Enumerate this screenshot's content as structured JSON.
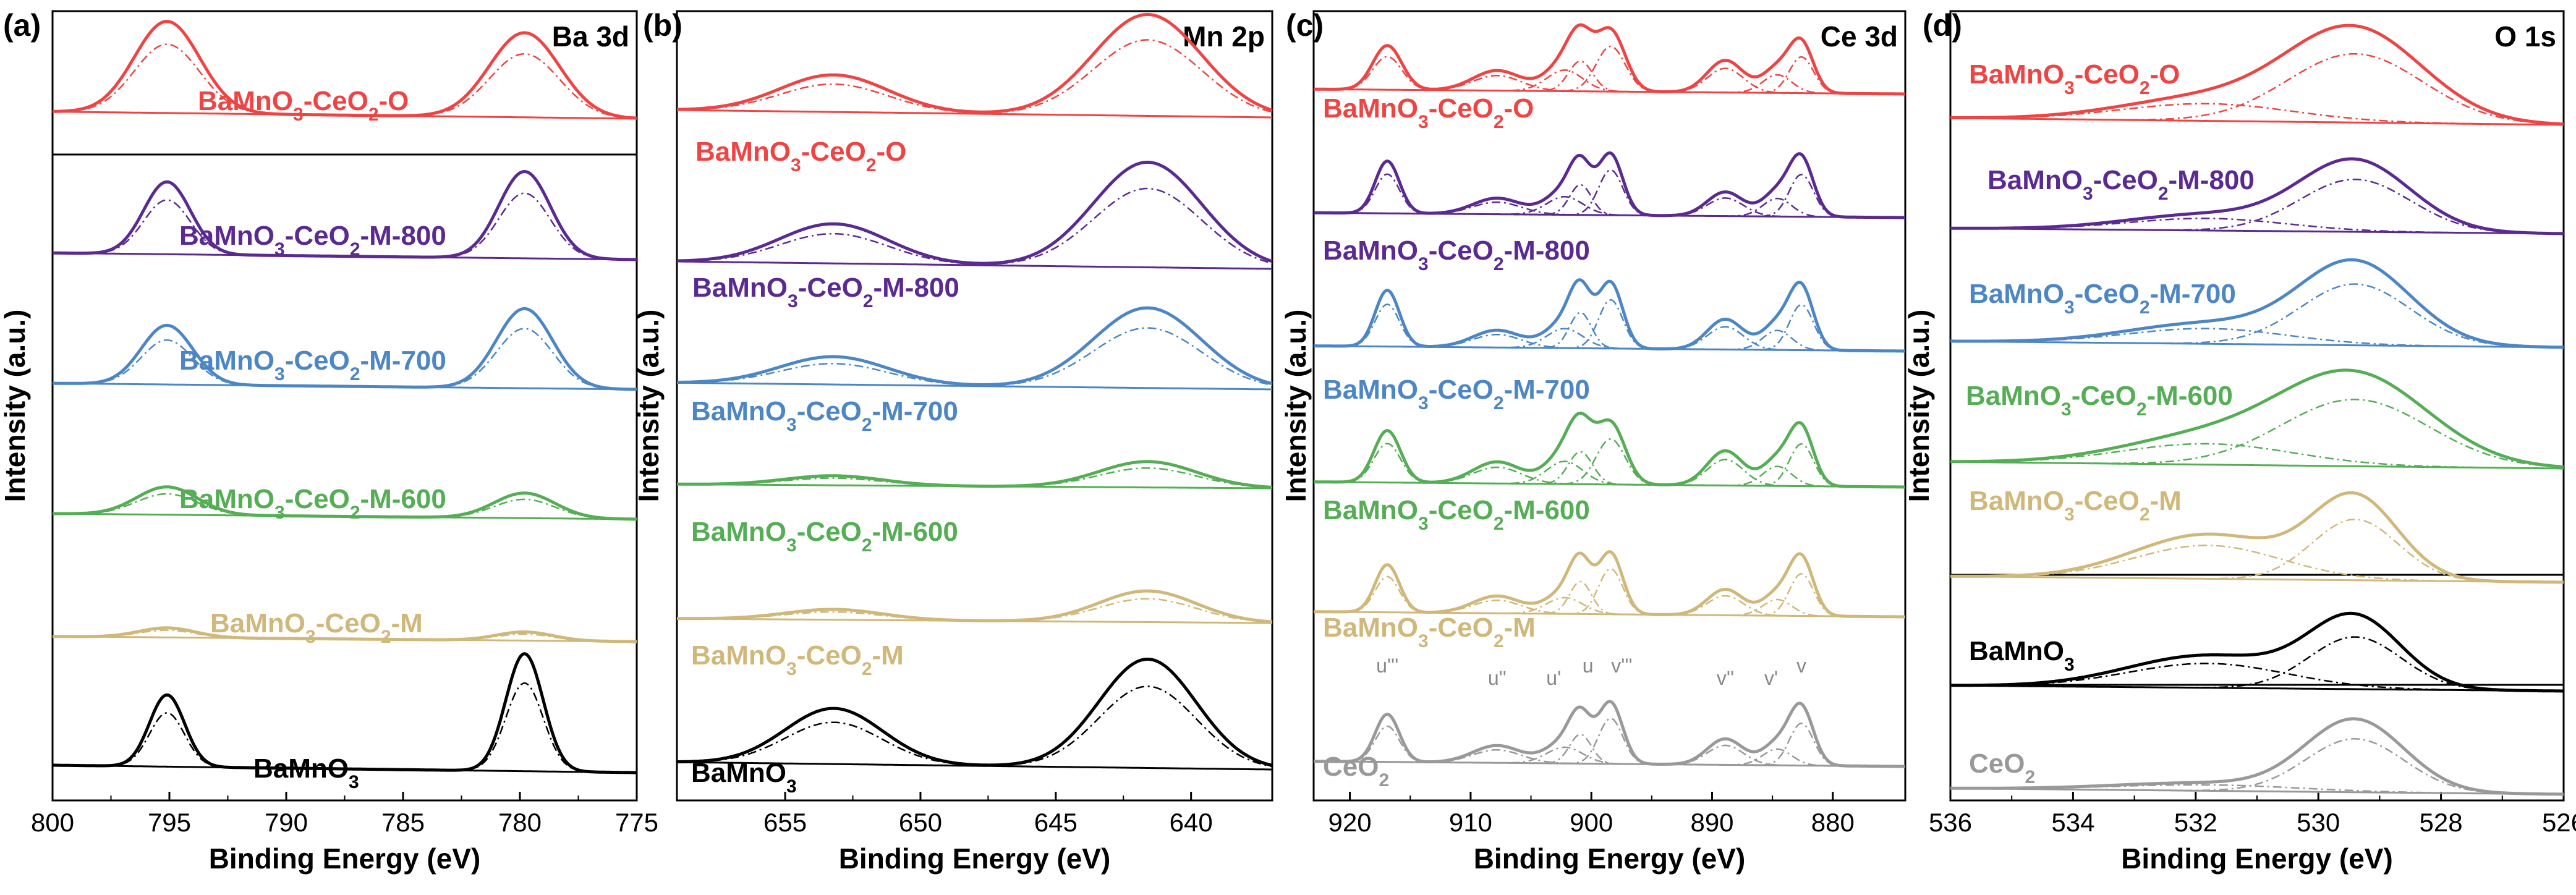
{
  "figure": {
    "y_axis_label": "Intensity (a.u.)",
    "x_axis_label": "Binding Energy (eV)"
  },
  "colors": {
    "O": "#ee4444",
    "M800": "#5a2a91",
    "M700": "#4d86c5",
    "M600": "#55ad55",
    "M": "#d0b87a",
    "BaMnO3": "#000000",
    "CeO2": "#999999"
  },
  "chart_data": [
    {
      "type": "line",
      "panel": "(a)",
      "title": "Ba 3d",
      "xlabel": "Binding Energy (eV)",
      "ylabel": "Intensity (a.u.)",
      "xlim": [
        800,
        775
      ],
      "xticks": [
        800,
        795,
        790,
        785,
        780,
        775
      ],
      "xtick_labels": [
        "800",
        "795",
        "790",
        "785",
        "780",
        "775"
      ],
      "peaks_eV": [
        795.1,
        779.8
      ],
      "series": [
        {
          "key": "O",
          "name": "BaMnO3-CeO2-O",
          "label_parts": [
            "BaMnO",
            "3",
            "-CeO",
            "2",
            "-O"
          ],
          "baseline": 0,
          "heights": [
            0.78,
            0.72
          ],
          "widths": [
            1.4,
            1.5
          ]
        },
        {
          "key": "M800",
          "name": "BaMnO3-CeO2-M-800",
          "label_parts": [
            "BaMnO",
            "3",
            "-CeO",
            "2",
            "-M-800"
          ],
          "baseline": 1,
          "heights": [
            0.65,
            0.78
          ],
          "widths": [
            1.0,
            1.1
          ]
        },
        {
          "key": "M700",
          "name": "BaMnO3-CeO2-M-700",
          "label_parts": [
            "BaMnO",
            "3",
            "-CeO",
            "2",
            "-M-700"
          ],
          "baseline": 2,
          "heights": [
            0.58,
            0.78
          ],
          "widths": [
            1.1,
            1.2
          ]
        },
        {
          "key": "M600",
          "name": "BaMnO3-CeO2-M-600",
          "label_parts": [
            "BaMnO",
            "3",
            "-CeO",
            "2",
            "-M-600"
          ],
          "baseline": 3,
          "heights": [
            0.3,
            0.27
          ],
          "widths": [
            1.3,
            1.3
          ]
        },
        {
          "key": "M",
          "name": "BaMnO3-CeO2-M",
          "label_parts": [
            "BaMnO",
            "3",
            "-CeO",
            "2",
            "-M"
          ],
          "baseline": 4,
          "heights": [
            0.11,
            0.1
          ],
          "widths": [
            1.2,
            1.2
          ]
        },
        {
          "key": "BaMnO3",
          "name": "BaMnO3",
          "label_parts": [
            "BaMnO",
            "3"
          ],
          "baseline": 5,
          "heights": [
            0.58,
            0.95
          ],
          "widths": [
            0.75,
            0.8
          ]
        }
      ]
    },
    {
      "type": "line",
      "panel": "(b)",
      "title": "Mn 2p",
      "xlabel": "Binding Energy (eV)",
      "ylabel": "Intensity (a.u.)",
      "xlim": [
        659,
        637
      ],
      "xticks": [
        655,
        650,
        645,
        640
      ],
      "xtick_labels": [
        "655",
        "650",
        "645",
        "640"
      ],
      "peaks_eV": [
        653.2,
        641.6
      ],
      "series": [
        {
          "key": "O",
          "name": "BaMnO3-CeO2-O",
          "label_parts": [
            "BaMnO",
            "3",
            "-CeO",
            "2",
            "-O"
          ],
          "baseline": 0,
          "heights": [
            0.3,
            0.82
          ],
          "widths": [
            2.0,
            2.0
          ]
        },
        {
          "key": "M800",
          "name": "BaMnO3-CeO2-M-800",
          "label_parts": [
            "BaMnO",
            "3",
            "-CeO",
            "2",
            "-M-800"
          ],
          "baseline": 1,
          "heights": [
            0.32,
            0.85
          ],
          "widths": [
            2.0,
            2.0
          ]
        },
        {
          "key": "M700",
          "name": "BaMnO3-CeO2-M-700",
          "label_parts": [
            "BaMnO",
            "3",
            "-CeO",
            "2",
            "-M-700"
          ],
          "baseline": 2,
          "heights": [
            0.25,
            0.72
          ],
          "widths": [
            2.0,
            2.0
          ]
        },
        {
          "key": "M600",
          "name": "BaMnO3-CeO2-M-600",
          "label_parts": [
            "BaMnO",
            "3",
            "-CeO",
            "2",
            "-M-600"
          ],
          "baseline": 3,
          "heights": [
            0.14,
            0.38
          ],
          "widths": [
            1.8,
            1.8
          ]
        },
        {
          "key": "M",
          "name": "BaMnO3-CeO2-M",
          "label_parts": [
            "BaMnO",
            "3",
            "-CeO",
            "2",
            "-M"
          ],
          "baseline": 4,
          "heights": [
            0.14,
            0.42
          ],
          "widths": [
            1.8,
            1.8
          ]
        },
        {
          "key": "BaMnO3",
          "name": "BaMnO3",
          "label_parts": [
            "BaMnO",
            "3"
          ],
          "baseline": 5,
          "heights": [
            0.45,
            0.88
          ],
          "widths": [
            1.8,
            1.8
          ]
        }
      ]
    },
    {
      "type": "line",
      "panel": "(c)",
      "title": "Ce 3d",
      "xlabel": "Binding Energy (eV)",
      "ylabel": "Intensity (a.u.)",
      "xlim": [
        923,
        874
      ],
      "xticks": [
        920,
        910,
        900,
        890,
        880
      ],
      "xtick_labels": [
        "920",
        "910",
        "900",
        "890",
        "880"
      ],
      "peak_labels": [
        {
          "text": "u'''",
          "eV": 916.9
        },
        {
          "text": "u''",
          "eV": 907.8
        },
        {
          "text": "u'",
          "eV": 902.2
        },
        {
          "text": "u",
          "eV": 900.9
        },
        {
          "text": "v'''",
          "eV": 898.4
        },
        {
          "text": "v''",
          "eV": 888.9
        },
        {
          "text": "v'",
          "eV": 884.6
        },
        {
          "text": "v",
          "eV": 882.6
        }
      ],
      "series": [
        {
          "key": "O",
          "name": "BaMnO3-CeO2-O",
          "label_parts": [
            "BaMnO",
            "3",
            "-CeO",
            "2",
            "-O"
          ],
          "baseline": 0,
          "heights": [
            0.55,
            0.25,
            0.35,
            0.5,
            0.75,
            0.4,
            0.3,
            0.6
          ],
          "widths": [
            1.2,
            2.0,
            1.5,
            1.0,
            1.2,
            1.5,
            1.2,
            1.0
          ]
        },
        {
          "key": "M800",
          "name": "BaMnO3-CeO2-M-800",
          "label_parts": [
            "BaMnO",
            "3",
            "-CeO",
            "2",
            "-M-800"
          ],
          "baseline": 1,
          "heights": [
            0.65,
            0.2,
            0.3,
            0.5,
            0.75,
            0.3,
            0.3,
            0.7
          ],
          "widths": [
            1.0,
            2.0,
            1.5,
            0.9,
            1.0,
            1.5,
            1.2,
            1.0
          ]
        },
        {
          "key": "M700",
          "name": "BaMnO3-CeO2-M-700",
          "label_parts": [
            "BaMnO",
            "3",
            "-CeO",
            "2",
            "-M-700"
          ],
          "baseline": 2,
          "heights": [
            0.65,
            0.2,
            0.3,
            0.55,
            0.75,
            0.35,
            0.3,
            0.7
          ],
          "widths": [
            1.0,
            2.0,
            1.5,
            0.9,
            1.0,
            1.5,
            1.2,
            1.0
          ]
        },
        {
          "key": "M600",
          "name": "BaMnO3-CeO2-M-600",
          "label_parts": [
            "BaMnO",
            "3",
            "-CeO",
            "2",
            "-M-600"
          ],
          "baseline": 3,
          "heights": [
            0.6,
            0.25,
            0.35,
            0.5,
            0.7,
            0.4,
            0.3,
            0.65
          ],
          "widths": [
            1.1,
            2.0,
            1.5,
            1.0,
            1.2,
            1.5,
            1.2,
            1.0
          ]
        },
        {
          "key": "M",
          "name": "BaMnO3-CeO2-M",
          "label_parts": [
            "BaMnO",
            "3",
            "-CeO",
            "2",
            "-M"
          ],
          "baseline": 4,
          "heights": [
            0.55,
            0.2,
            0.25,
            0.5,
            0.7,
            0.3,
            0.25,
            0.65
          ],
          "widths": [
            1.0,
            2.0,
            1.5,
            0.9,
            1.0,
            1.5,
            1.2,
            1.0
          ]
        },
        {
          "key": "CeO2",
          "name": "CeO2",
          "label_parts": [
            "CeO",
            "2"
          ],
          "baseline": 5,
          "heights": [
            0.55,
            0.2,
            0.25,
            0.45,
            0.7,
            0.3,
            0.25,
            0.65
          ],
          "widths": [
            1.0,
            2.0,
            1.5,
            0.9,
            1.0,
            1.5,
            1.2,
            1.0
          ]
        }
      ]
    },
    {
      "type": "line",
      "panel": "(d)",
      "title": "O 1s",
      "xlabel": "Binding Energy (eV)",
      "ylabel": "Intensity (a.u.)",
      "xlim": [
        536,
        526
      ],
      "xticks": [
        536,
        534,
        532,
        530,
        528,
        526
      ],
      "xtick_labels": [
        "536",
        "534",
        "532",
        "530",
        "528",
        "526"
      ],
      "peaks_eV": [
        531.8,
        529.4
      ],
      "series": [
        {
          "key": "O",
          "name": "BaMnO3-CeO2-O",
          "label_parts": [
            "BaMnO",
            "3",
            "-CeO",
            "2",
            "-O"
          ],
          "baseline": 0,
          "heights": [
            0.2,
            0.8
          ],
          "widths": [
            1.4,
            1.1
          ]
        },
        {
          "key": "M800",
          "name": "BaMnO3-CeO2-M-800",
          "label_parts": [
            "BaMnO",
            "3",
            "-CeO",
            "2",
            "-M-800"
          ],
          "baseline": 1,
          "heights": [
            0.18,
            0.78
          ],
          "widths": [
            1.3,
            0.9
          ]
        },
        {
          "key": "M700",
          "name": "BaMnO3-CeO2-M-700",
          "label_parts": [
            "BaMnO",
            "3",
            "-CeO",
            "2",
            "-M-700"
          ],
          "baseline": 2,
          "heights": [
            0.2,
            0.8
          ],
          "widths": [
            1.3,
            0.9
          ]
        },
        {
          "key": "M600",
          "name": "BaMnO3-CeO2-M-600",
          "label_parts": [
            "BaMnO",
            "3",
            "-CeO",
            "2",
            "-M-600"
          ],
          "baseline": 3,
          "heights": [
            0.25,
            0.8
          ],
          "widths": [
            1.4,
            1.2
          ]
        },
        {
          "key": "M",
          "name": "BaMnO3-CeO2-M",
          "label_parts": [
            "BaMnO",
            "3",
            "-CeO",
            "2",
            "-M"
          ],
          "baseline": 4,
          "heights": [
            0.45,
            0.82
          ],
          "widths": [
            1.2,
            0.7
          ]
        },
        {
          "key": "BaMnO3",
          "name": "BaMnO3",
          "label_parts": [
            "BaMnO",
            "3"
          ],
          "baseline": 5,
          "heights": [
            0.35,
            0.75
          ],
          "widths": [
            1.3,
            0.75
          ]
        },
        {
          "key": "CeO2",
          "name": "CeO2",
          "label_parts": [
            "CeO",
            "2"
          ],
          "baseline": 6,
          "heights": [
            0.08,
            0.72
          ],
          "widths": [
            1.5,
            0.8
          ]
        }
      ]
    }
  ]
}
